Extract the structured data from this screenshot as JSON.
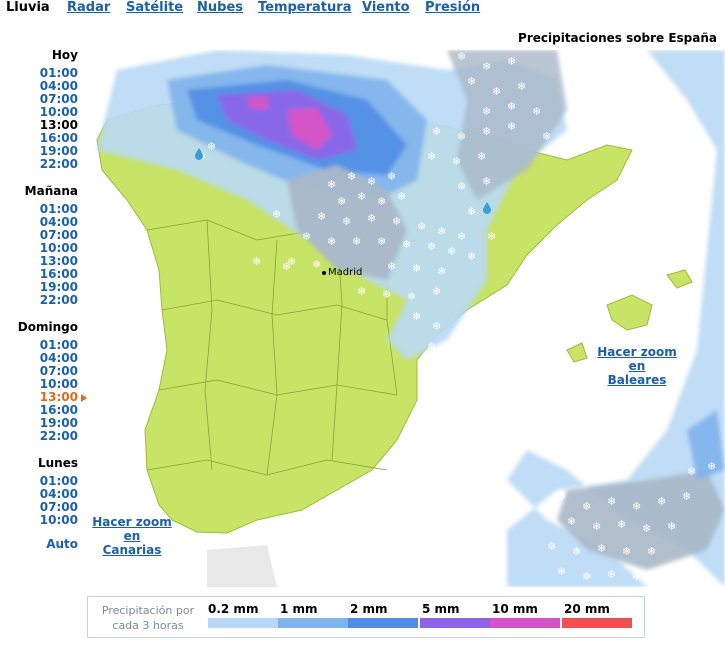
{
  "tabs": [
    "Lluvia",
    "Radar",
    "Satélite",
    "Nubes",
    "Temperatura",
    "Viento",
    "Presión"
  ],
  "map_title": "Precipitaciones sobre España",
  "timeline": {
    "days": [
      {
        "label": "Hoy",
        "times": [
          "01:00",
          "04:00",
          "07:00",
          "10:00",
          "13:00",
          "16:00",
          "19:00",
          "22:00"
        ]
      },
      {
        "label": "Mañana",
        "times": [
          "01:00",
          "04:00",
          "07:00",
          "10:00",
          "13:00",
          "16:00",
          "19:00",
          "22:00"
        ]
      },
      {
        "label": "Domingo",
        "times": [
          "01:00",
          "04:00",
          "07:00",
          "10:00",
          "13:00",
          "16:00",
          "19:00",
          "22:00"
        ]
      },
      {
        "label": "Lunes",
        "times": [
          "01:00",
          "04:00",
          "07:00",
          "10:00"
        ]
      }
    ],
    "current_day": "Domingo",
    "current_time": "13:00",
    "auto_label": "Auto"
  },
  "city": "Madrid",
  "zoom_links": {
    "baleares": [
      "Hacer zoom en",
      "Baleares"
    ],
    "canarias": [
      "Hacer zoom en",
      "Canarias"
    ]
  },
  "legend": {
    "caption": [
      "Precipitación por",
      "cada 3 horas"
    ],
    "items": [
      {
        "label": "0.2 mm",
        "color": "#b8d9f5"
      },
      {
        "label": "1 mm",
        "color": "#7fb3ec"
      },
      {
        "label": "2 mm",
        "color": "#4f8de6"
      },
      {
        "label": "5 mm",
        "color": "#8f63e8"
      },
      {
        "label": "10 mm",
        "color": "#d454c8"
      },
      {
        "label": "20 mm",
        "color": "#f04f4f"
      }
    ]
  },
  "colors": {
    "land": "#c8e466",
    "sea": "#ffffff",
    "snow_shade": "#a9b8c8",
    "link": "#1b5fa8",
    "current": "#e06a1b"
  },
  "icons": [
    "snowflake-icon",
    "raindrop-icon",
    "arrow-right-icon"
  ]
}
